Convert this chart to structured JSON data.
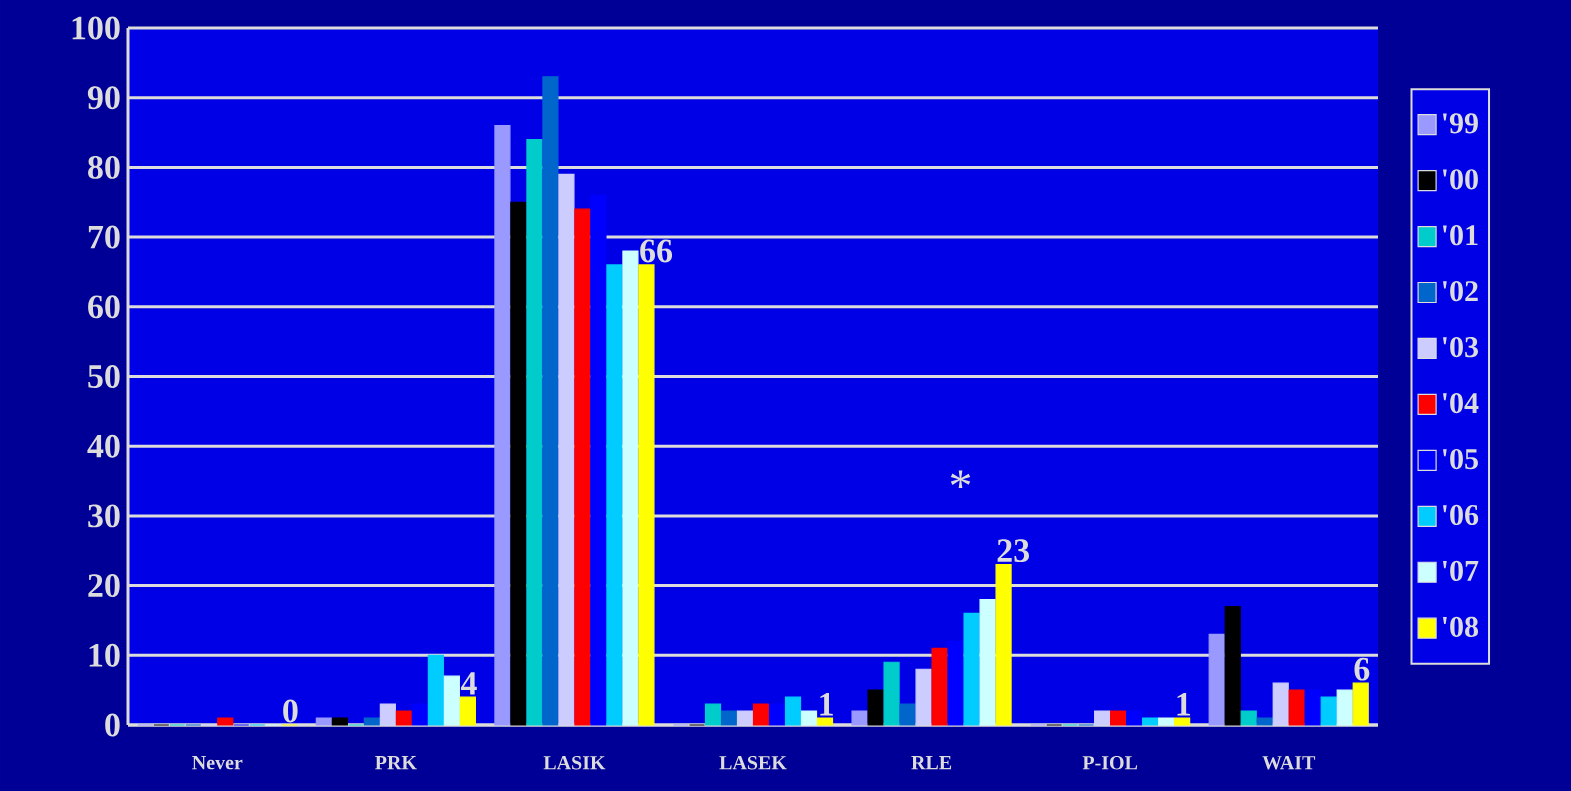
{
  "chart_data": {
    "type": "bar",
    "categories": [
      "Never",
      "PRK",
      "LASIK",
      "LASEK",
      "RLE",
      "P-IOL",
      "WAIT"
    ],
    "series": [
      {
        "name": "'99",
        "color": "#9999ff",
        "values": [
          0,
          1,
          86,
          0,
          2,
          0,
          13
        ]
      },
      {
        "name": "'00",
        "color": "#000000",
        "values": [
          0,
          1,
          75,
          0,
          5,
          0,
          17
        ]
      },
      {
        "name": "'01",
        "color": "#00cccc",
        "values": [
          0,
          0,
          84,
          3,
          9,
          0,
          2
        ]
      },
      {
        "name": "'02",
        "color": "#0066cc",
        "values": [
          0,
          1,
          93,
          2,
          3,
          0,
          1
        ]
      },
      {
        "name": "'03",
        "color": "#ccccff",
        "values": [
          0,
          3,
          79,
          2,
          8,
          2,
          6
        ]
      },
      {
        "name": "'04",
        "color": "#ff0000",
        "values": [
          1,
          2,
          74,
          3,
          11,
          2,
          5
        ]
      },
      {
        "name": "'05",
        "color": "#0000ff",
        "values": [
          0,
          3,
          76,
          3,
          12,
          2,
          5
        ]
      },
      {
        "name": "'06",
        "color": "#00ccff",
        "values": [
          0,
          10,
          66,
          4,
          16,
          1,
          4
        ]
      },
      {
        "name": "'07",
        "color": "#ccffff",
        "values": [
          0,
          7,
          68,
          2,
          18,
          1,
          5
        ]
      },
      {
        "name": "'08",
        "color": "#ffff00",
        "values": [
          0,
          4,
          66,
          1,
          23,
          1,
          6
        ],
        "value_labels": [
          "0",
          "4",
          "66",
          "1",
          "23",
          "1",
          "6"
        ]
      }
    ],
    "ylim": [
      0,
      100
    ],
    "yticks": [
      0,
      10,
      20,
      30,
      40,
      50,
      60,
      70,
      80,
      90,
      100
    ],
    "grid": "y",
    "legend": "right",
    "annotations": [
      "*"
    ]
  }
}
